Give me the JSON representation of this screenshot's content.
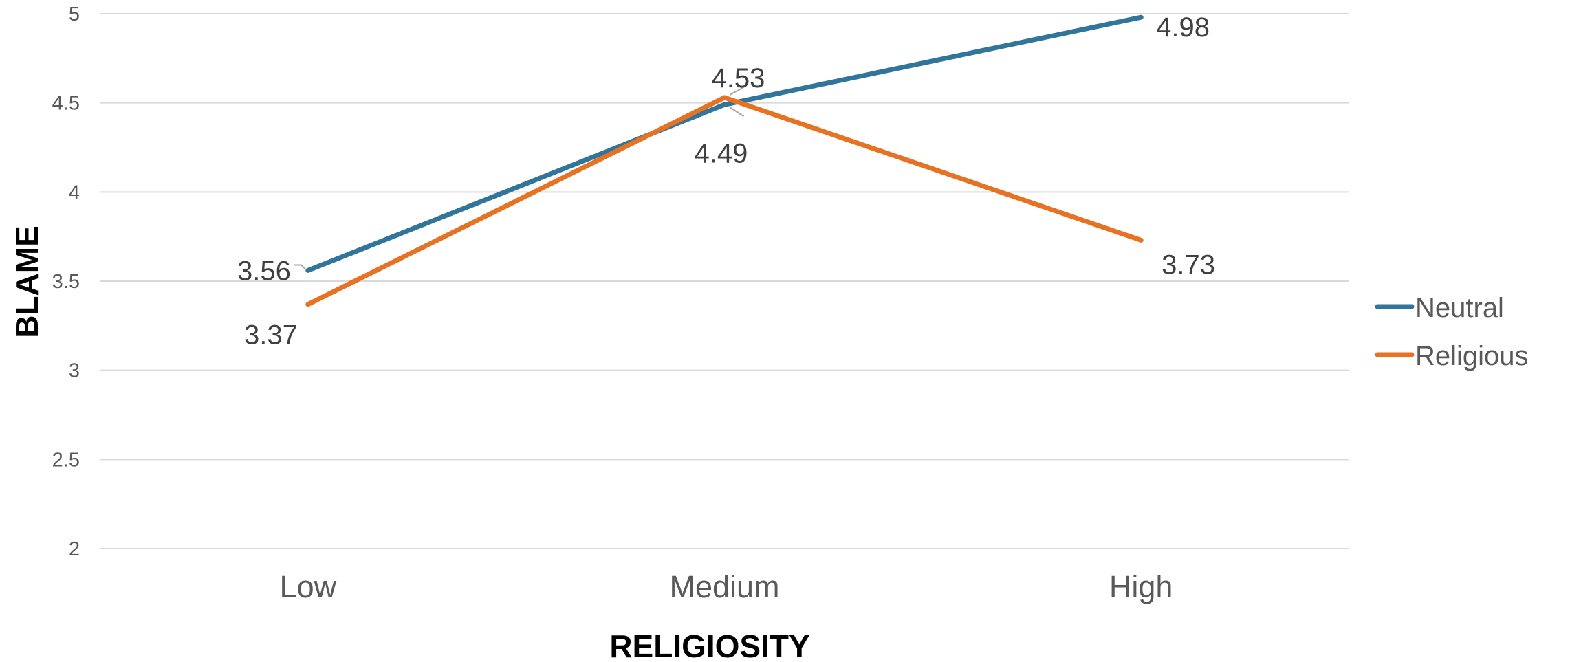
{
  "chart_data": {
    "type": "line",
    "title": "",
    "xlabel": "RELIGIOSITY",
    "ylabel": "BLAME",
    "categories": [
      "Low",
      "Medium",
      "High"
    ],
    "ylim": [
      2,
      5
    ],
    "yticks": [
      "2",
      "2.5",
      "3",
      "3.5",
      "4",
      "4.5",
      "5"
    ],
    "grid": true,
    "legend_position": "right",
    "series": [
      {
        "name": "Neutral",
        "color": "#31759b",
        "values": [
          3.56,
          4.49,
          4.98
        ],
        "labels": [
          "3.56",
          "4.49",
          "4.98"
        ]
      },
      {
        "name": "Religious",
        "color": "#e57323",
        "values": [
          3.37,
          4.53,
          3.73
        ],
        "labels": [
          "3.37",
          "4.53",
          "3.73"
        ]
      }
    ]
  }
}
